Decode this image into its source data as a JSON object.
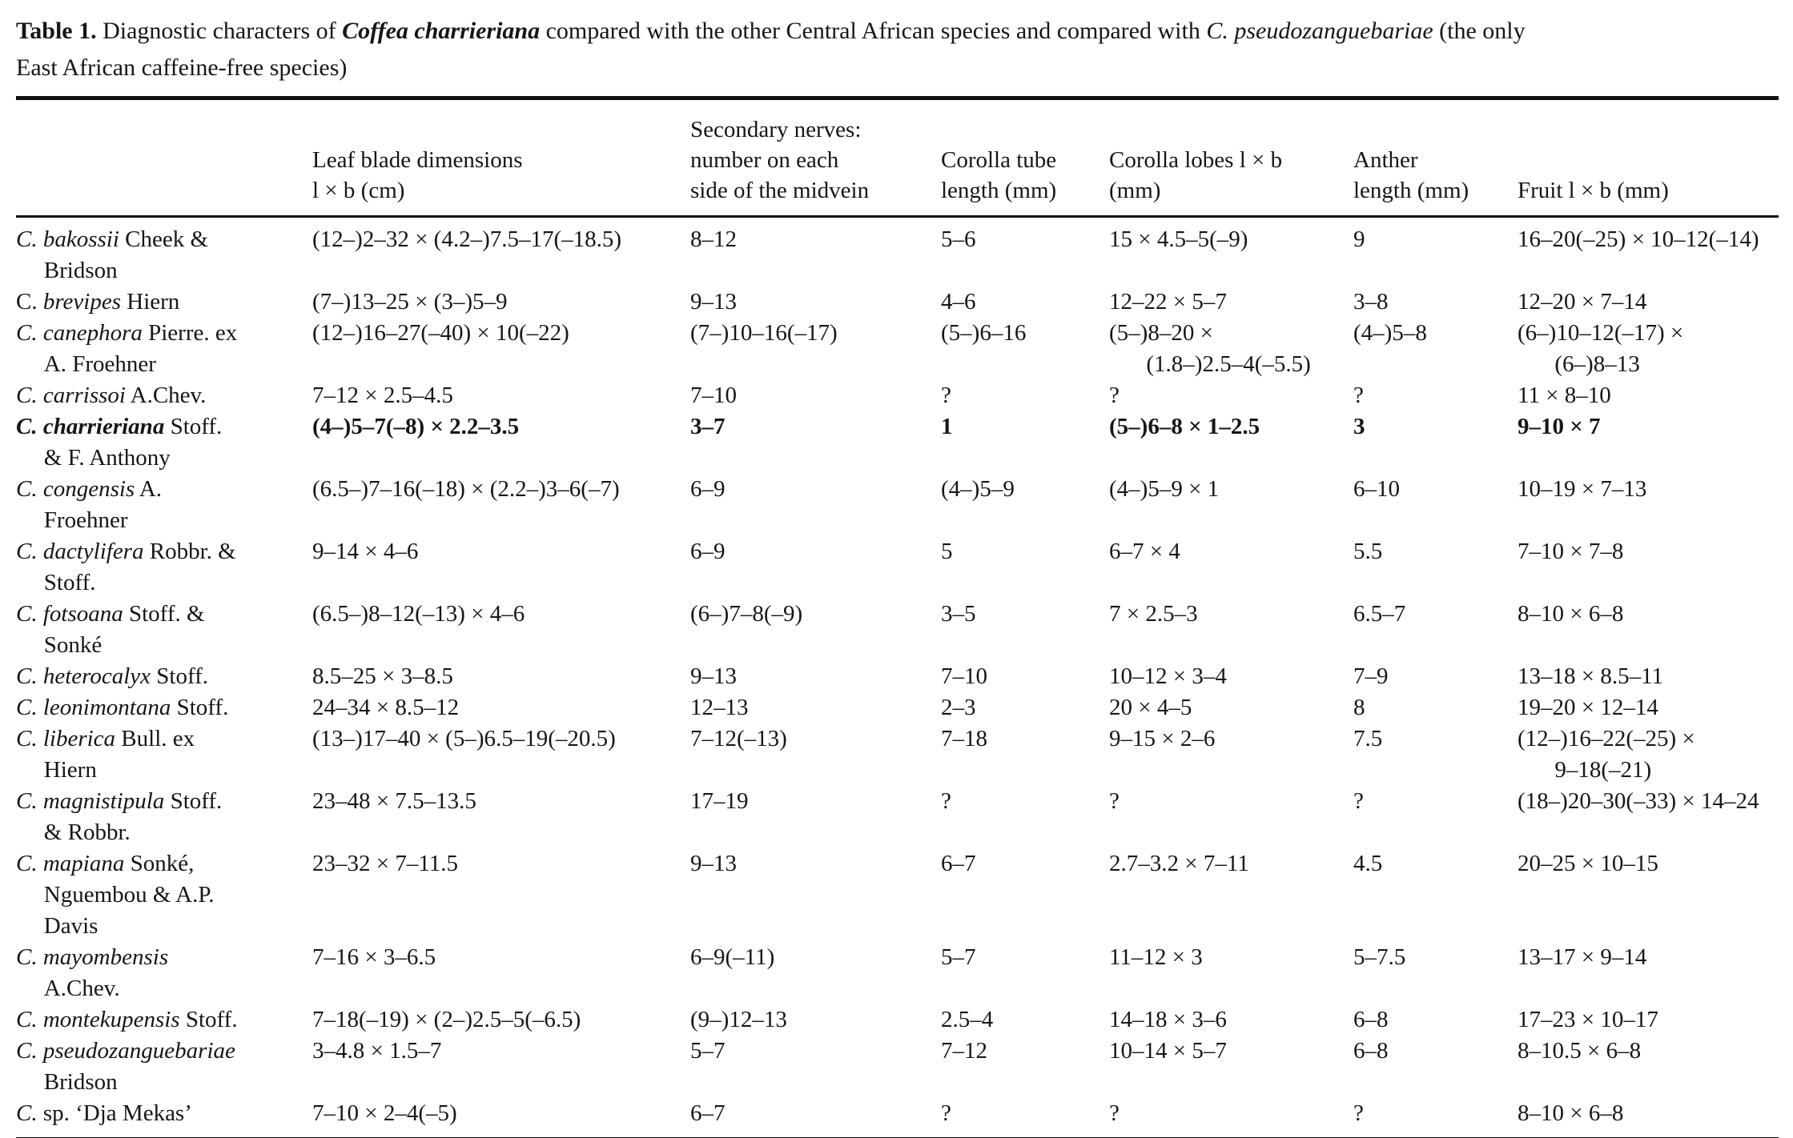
{
  "caption": {
    "label": "Table 1.",
    "text1": " Diagnostic characters of ",
    "species_bold": "Coffea charrieriana",
    "text2": " compared with the other Central African species and compared with ",
    "species_italic": "C. pseudozanguebariae",
    "text3": " (the only\nEast African caffeine-free species)"
  },
  "table": {
    "headers": [
      "",
      "Leaf blade dimensions\nl × b (cm)",
      "Secondary nerves:\nnumber on each\nside of the midvein",
      "Corolla tube\nlength (mm)",
      "Corolla lobes l × b\n(mm)",
      "Anther\nlength (mm)",
      "Fruit l × b (mm)"
    ],
    "rows": [
      {
        "species": {
          "pre": "",
          "italic": "C. bakossii",
          "post": " Cheek &\nBridson"
        },
        "bold": false,
        "values": [
          "(12–)2–32 × (4.2–)7.5–17(–18.5)",
          "8–12",
          "5–6",
          "15 × 4.5–5(–9)",
          "9",
          "16–20(–25) × 10–12(–14)"
        ]
      },
      {
        "species": {
          "pre": "C. ",
          "italic": "brevipes",
          "post": " Hiern"
        },
        "bold": false,
        "values": [
          "(7–)13–25 × (3–)5–9",
          "9–13",
          "4–6",
          "12–22 × 5–7",
          "3–8",
          "12–20 × 7–14"
        ]
      },
      {
        "species": {
          "pre": "",
          "italic": "C. canephora",
          "post": " Pierre. ex\nA. Froehner"
        },
        "bold": false,
        "values": [
          "(12–)16–27(–40) × 10(–22)",
          "(7–)10–16(–17)",
          "(5–)6–16",
          "(5–)8–20 ×\n(1.8–)2.5–4(–5.5)",
          "(4–)5–8",
          "(6–)10–12(–17) ×\n(6–)8–13"
        ]
      },
      {
        "species": {
          "pre": "",
          "italic": "C. carrissoi",
          "post": " A.Chev."
        },
        "bold": false,
        "values": [
          "7–12 × 2.5–4.5",
          "7–10",
          "?",
          "?",
          "?",
          "11 × 8–10"
        ]
      },
      {
        "species": {
          "pre": "",
          "italic": "C. charrieriana",
          "post": " Stoff.\n& F. Anthony"
        },
        "bold": true,
        "values": [
          "(4–)5–7(–8) × 2.2–3.5",
          "3–7",
          "1",
          "(5–)6–8 × 1–2.5",
          "3",
          "9–10 × 7"
        ]
      },
      {
        "species": {
          "pre": "",
          "italic": "C. congensis",
          "post": " A.\nFroehner"
        },
        "bold": false,
        "values": [
          "(6.5–)7–16(–18) × (2.2–)3–6(–7)",
          "6–9",
          "(4–)5–9",
          "(4–)5–9 × 1",
          "6–10",
          "10–19 × 7–13"
        ]
      },
      {
        "species": {
          "pre": "",
          "italic": "C. dactylifera",
          "post": " Robbr. &\nStoff."
        },
        "bold": false,
        "values": [
          "9–14 × 4–6",
          "6–9",
          "5",
          "6–7 × 4",
          "5.5",
          "7–10 × 7–8"
        ]
      },
      {
        "species": {
          "pre": "",
          "italic": "C. fotsoana",
          "post": " Stoff. &\nSonké"
        },
        "bold": false,
        "values": [
          "(6.5–)8–12(–13) × 4–6",
          "(6–)7–8(–9)",
          "3–5",
          "7 × 2.5–3",
          "6.5–7",
          "8–10 × 6–8"
        ]
      },
      {
        "species": {
          "pre": "",
          "italic": "C. heterocalyx",
          "post": " Stoff."
        },
        "bold": false,
        "values": [
          "8.5–25 × 3–8.5",
          "9–13",
          "7–10",
          "10–12 × 3–4",
          "7–9",
          "13–18 × 8.5–11"
        ]
      },
      {
        "species": {
          "pre": "",
          "italic": "C. leonimontana",
          "post": " Stoff."
        },
        "bold": false,
        "values": [
          "24–34 × 8.5–12",
          "12–13",
          "2–3",
          "20 × 4–5",
          "8",
          "19–20 × 12–14"
        ]
      },
      {
        "species": {
          "pre": "",
          "italic": "C. liberica",
          "post": " Bull. ex\nHiern"
        },
        "bold": false,
        "values": [
          "(13–)17–40 × (5–)6.5–19(–20.5)",
          "7–12(–13)",
          "7–18",
          "9–15 × 2–6",
          "7.5",
          "(12–)16–22(–25) ×\n9–18(–21)"
        ]
      },
      {
        "species": {
          "pre": "",
          "italic": "C. magnistipula",
          "post": " Stoff.\n& Robbr."
        },
        "bold": false,
        "values": [
          "23–48 × 7.5–13.5",
          "17–19",
          "?",
          "?",
          "?",
          "(18–)20–30(–33) × 14–24"
        ]
      },
      {
        "species": {
          "pre": "",
          "italic": "C. mapiana",
          "post": " Sonké,\nNguembou & A.P.\nDavis"
        },
        "bold": false,
        "values": [
          "23–32 × 7–11.5",
          "9–13",
          "6–7",
          "2.7–3.2 × 7–11",
          "4.5",
          "20–25 × 10–15"
        ]
      },
      {
        "species": {
          "pre": "",
          "italic": "C. mayombensis",
          "post": "\nA.Chev."
        },
        "bold": false,
        "values": [
          "7–16 × 3–6.5",
          "6–9(–11)",
          "5–7",
          "11–12 × 3",
          "5–7.5",
          "13–17 × 9–14"
        ]
      },
      {
        "species": {
          "pre": "",
          "italic": "C. montekupensis",
          "post": " Stoff."
        },
        "bold": false,
        "values": [
          "7–18(–19) × (2–)2.5–5(–6.5)",
          "(9–)12–13",
          "2.5–4",
          "14–18 × 3–6",
          "6–8",
          "17–23 × 10–17"
        ]
      },
      {
        "species": {
          "pre": "",
          "italic": "C. pseudozanguebariae",
          "post": "\nBridson"
        },
        "bold": false,
        "values": [
          "3–4.8 × 1.5–7",
          "5–7",
          "7–12",
          "10–14 × 5–7",
          "6–8",
          "8–10.5 × 6–8"
        ]
      },
      {
        "species": {
          "pre": "",
          "italic": "C.",
          "post": " sp. ‘Dja Mekas’"
        },
        "bold": false,
        "values": [
          "7–10 × 2–4(–5)",
          "6–7",
          "?",
          "?",
          "?",
          "8–10 × 6–8"
        ]
      }
    ]
  }
}
